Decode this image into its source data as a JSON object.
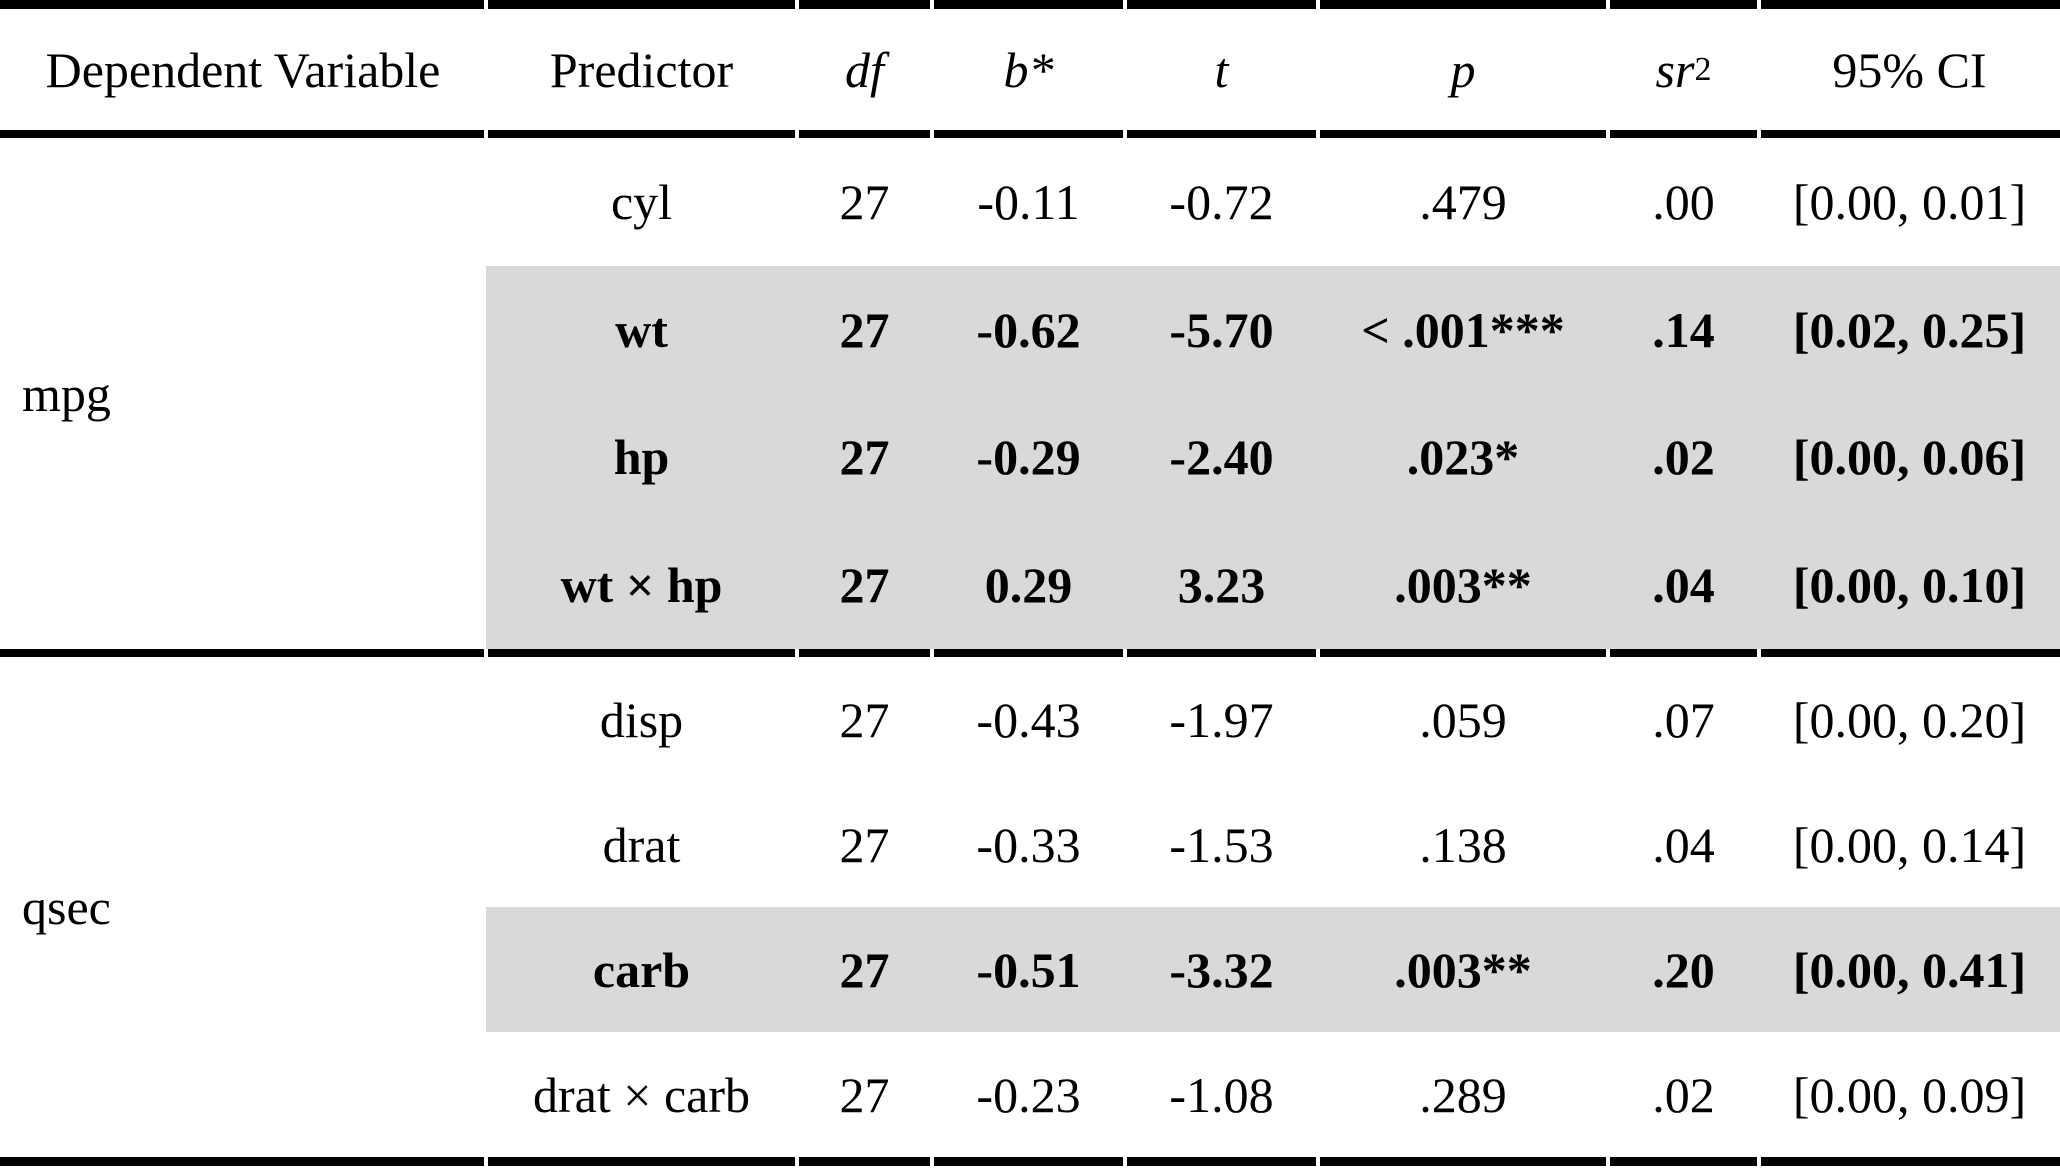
{
  "table": {
    "columns": [
      {
        "label": "Dependent Variable"
      },
      {
        "label": "Predictor"
      },
      {
        "label": "df",
        "italic": true
      },
      {
        "label": "b*",
        "italic": true
      },
      {
        "label": "t",
        "italic": true
      },
      {
        "label": "p",
        "italic": true
      },
      {
        "label": "sr",
        "sup": "2",
        "italic": true
      },
      {
        "label": "95% CI"
      }
    ],
    "groups": [
      {
        "dv": "mpg",
        "rows": [
          {
            "predictor": "cyl",
            "df": "27",
            "b": "-0.11",
            "t": "-0.72",
            "p": ".479",
            "sr2": ".00",
            "ci": "[0.00, 0.01]",
            "highlight": false
          },
          {
            "predictor": "wt",
            "df": "27",
            "b": "-0.62",
            "t": "-5.70",
            "p": "< .001***",
            "sr2": ".14",
            "ci": "[0.02, 0.25]",
            "highlight": true
          },
          {
            "predictor": "hp",
            "df": "27",
            "b": "-0.29",
            "t": "-2.40",
            "p": ".023*",
            "sr2": ".02",
            "ci": "[0.00, 0.06]",
            "highlight": true
          },
          {
            "predictor": "wt × hp",
            "df": "27",
            "b": "0.29",
            "t": "3.23",
            "p": ".003**",
            "sr2": ".04",
            "ci": "[0.00, 0.10]",
            "highlight": true
          }
        ]
      },
      {
        "dv": "qsec",
        "rows": [
          {
            "predictor": "disp",
            "df": "27",
            "b": "-0.43",
            "t": "-1.97",
            "p": ".059",
            "sr2": ".07",
            "ci": "[0.00, 0.20]",
            "highlight": false
          },
          {
            "predictor": "drat",
            "df": "27",
            "b": "-0.33",
            "t": "-1.53",
            "p": ".138",
            "sr2": ".04",
            "ci": "[0.00, 0.14]",
            "highlight": false
          },
          {
            "predictor": "carb",
            "df": "27",
            "b": "-0.51",
            "t": "-3.32",
            "p": ".003**",
            "sr2": ".20",
            "ci": "[0.00, 0.41]",
            "highlight": true
          },
          {
            "predictor": "drat × carb",
            "df": "27",
            "b": "-0.23",
            "t": "-1.08",
            "p": ".289",
            "sr2": ".02",
            "ci": "[0.00, 0.09]",
            "highlight": false
          }
        ]
      }
    ],
    "highlight_color": "#d9d9d9",
    "rule_color": "#000000",
    "text_color": "#000000"
  }
}
